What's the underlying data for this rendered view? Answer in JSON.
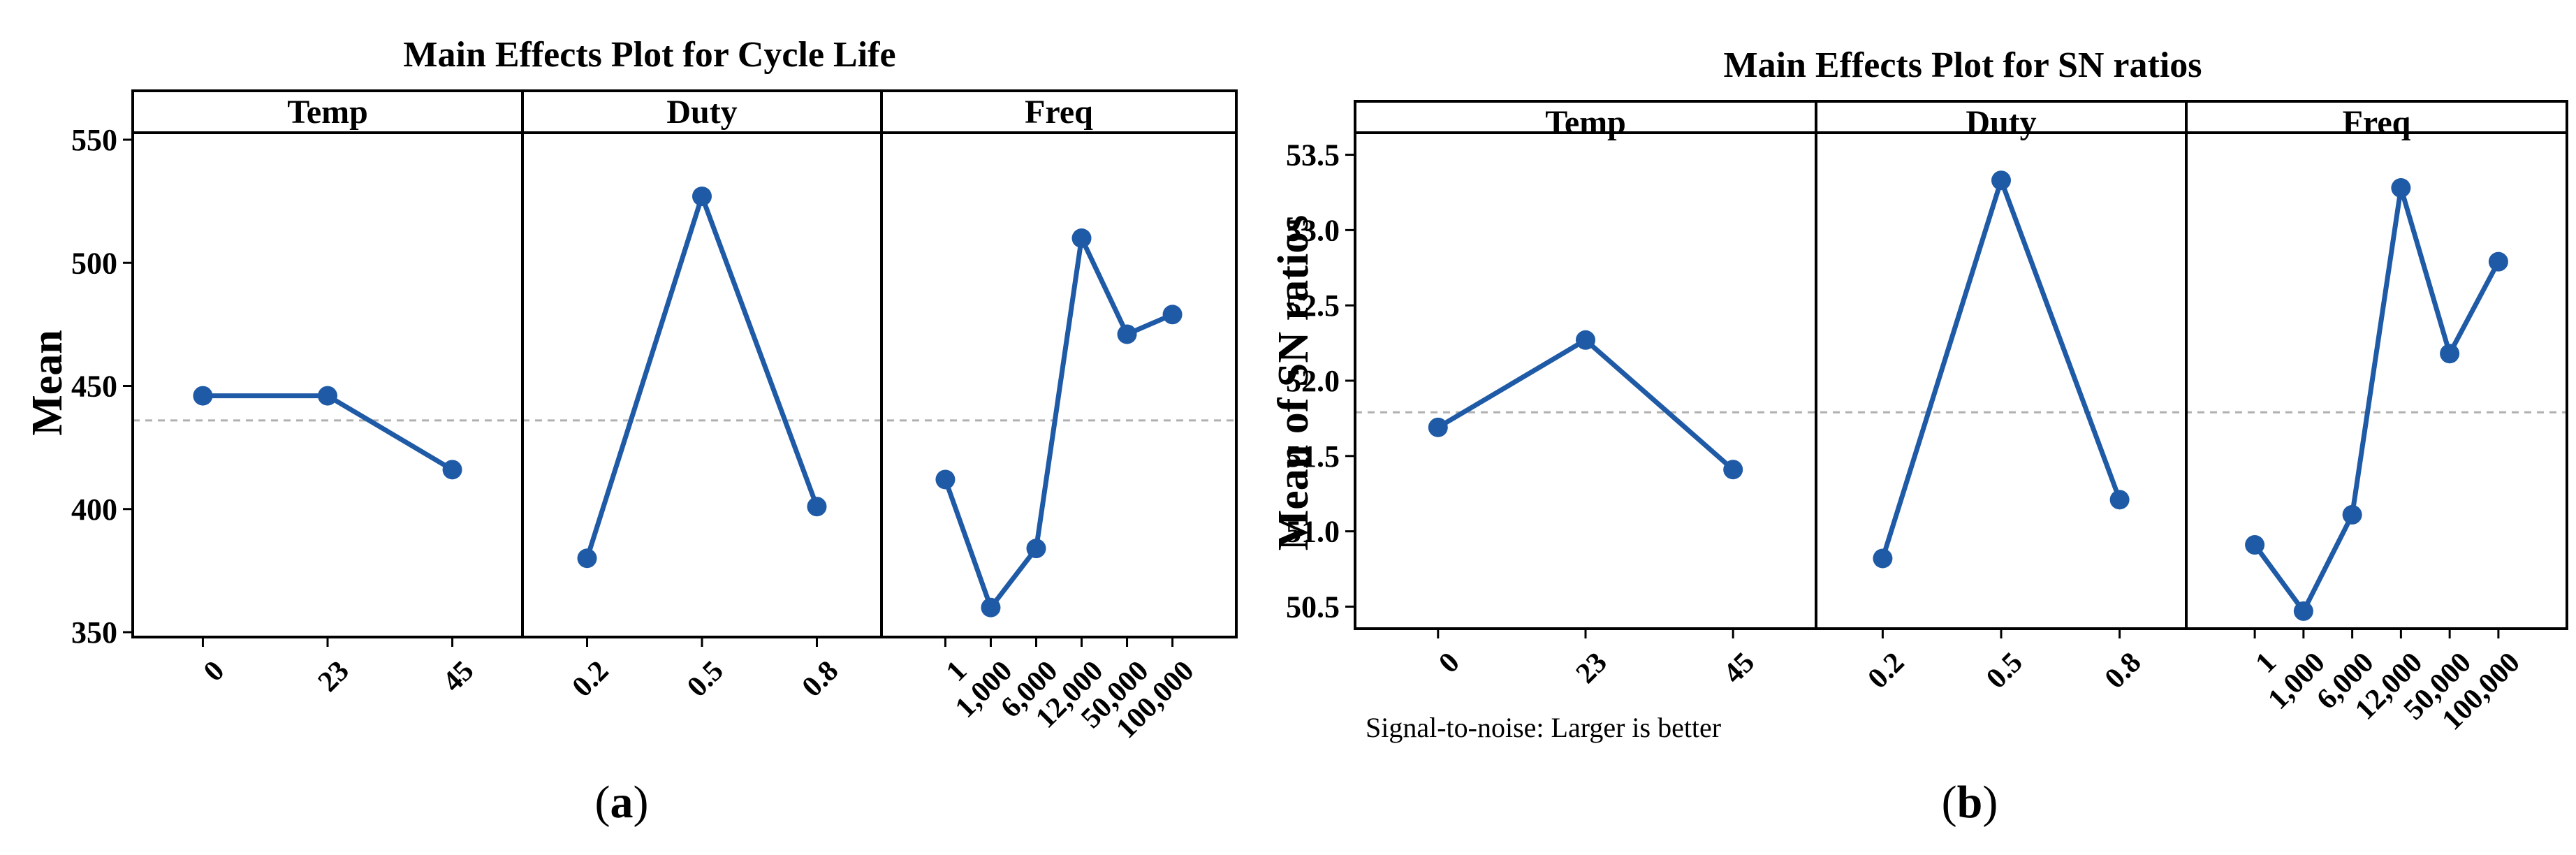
{
  "chart_data": [
    {
      "type": "line",
      "title": "Main Effects Plot for Cycle Life",
      "caption_label": "a",
      "ylabel": "Mean",
      "ylim": [
        350,
        550
      ],
      "yticks": [
        350,
        400,
        450,
        500,
        550
      ],
      "ytick_labels": [
        "350",
        "400",
        "450",
        "500",
        "550"
      ],
      "grand_mean": 436,
      "note": "",
      "panels": [
        {
          "name": "Temp",
          "categories": [
            "0",
            "23",
            "45"
          ],
          "values": [
            446,
            446,
            416
          ]
        },
        {
          "name": "Duty",
          "categories": [
            "0.2",
            "0.5",
            "0.8"
          ],
          "values": [
            380,
            527,
            401
          ]
        },
        {
          "name": "Freq",
          "categories": [
            "1",
            "1,000",
            "6,000",
            "12,000",
            "50,000",
            "100,000"
          ],
          "values": [
            412,
            360,
            384,
            510,
            471,
            479
          ]
        }
      ],
      "colors": {
        "line": "#1f5aa6",
        "reference": "#b0b0b0"
      }
    },
    {
      "type": "line",
      "title": "Main Effects Plot for SN ratios",
      "caption_label": "b",
      "ylabel": "Mean of SN ratios",
      "ylim": [
        50.4,
        53.6
      ],
      "yticks": [
        50.5,
        51.0,
        51.5,
        52.0,
        52.5,
        53.0,
        53.5
      ],
      "ytick_labels": [
        "50.5",
        "51.0",
        "51.5",
        "52.0",
        "52.5",
        "53.0",
        "53.5"
      ],
      "grand_mean": 51.79,
      "note": "Signal-to-noise: Larger is better",
      "panels": [
        {
          "name": "Temp",
          "categories": [
            "0",
            "23",
            "45"
          ],
          "values": [
            51.69,
            52.27,
            51.41
          ]
        },
        {
          "name": "Duty",
          "categories": [
            "0.2",
            "0.5",
            "0.8"
          ],
          "values": [
            50.82,
            53.33,
            51.21
          ]
        },
        {
          "name": "Freq",
          "categories": [
            "1",
            "1,000",
            "6,000",
            "12,000",
            "50,000",
            "100,000"
          ],
          "values": [
            50.91,
            50.47,
            51.11,
            53.28,
            52.18,
            52.79
          ]
        }
      ],
      "colors": {
        "line": "#1f5aa6",
        "reference": "#b0b0b0"
      }
    }
  ]
}
